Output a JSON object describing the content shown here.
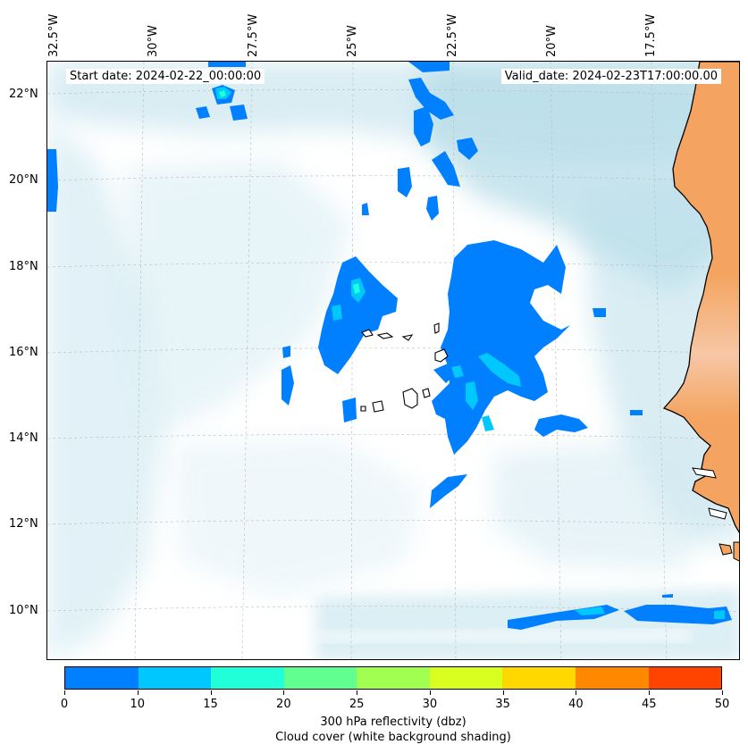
{
  "map": {
    "start_date": "Start date: 2024-02-22_00:00:00",
    "valid_date": "Valid_date: 2024-02-23T17:00:00.00",
    "lon_labels": [
      "32.5°W",
      "30°W",
      "27.5°W",
      "25°W",
      "22.5°W",
      "20°W",
      "17.5°W"
    ],
    "lat_labels": [
      "22°N",
      "20°N",
      "18°N",
      "16°N",
      "14°N",
      "12°N",
      "10°N"
    ]
  },
  "colorbar": {
    "ticks": [
      "0",
      "10",
      "15",
      "20",
      "25",
      "30",
      "35",
      "40",
      "45",
      "50"
    ],
    "colors": [
      "#0080ff",
      "#00c8ff",
      "#20ffd8",
      "#60ff90",
      "#a0ff50",
      "#d8ff20",
      "#ffd800",
      "#ff8800",
      "#ff4400"
    ],
    "label_line1": "300 hPa reflectivity (dbz)",
    "label_line2": "Cloud cover (white background shading)"
  },
  "palette": {
    "land": "#f4a460",
    "cloud": "#add8e6",
    "reflect_10": "#0080ff",
    "reflect_15": "#00c8ff",
    "reflect_20": "#20ffd8"
  }
}
